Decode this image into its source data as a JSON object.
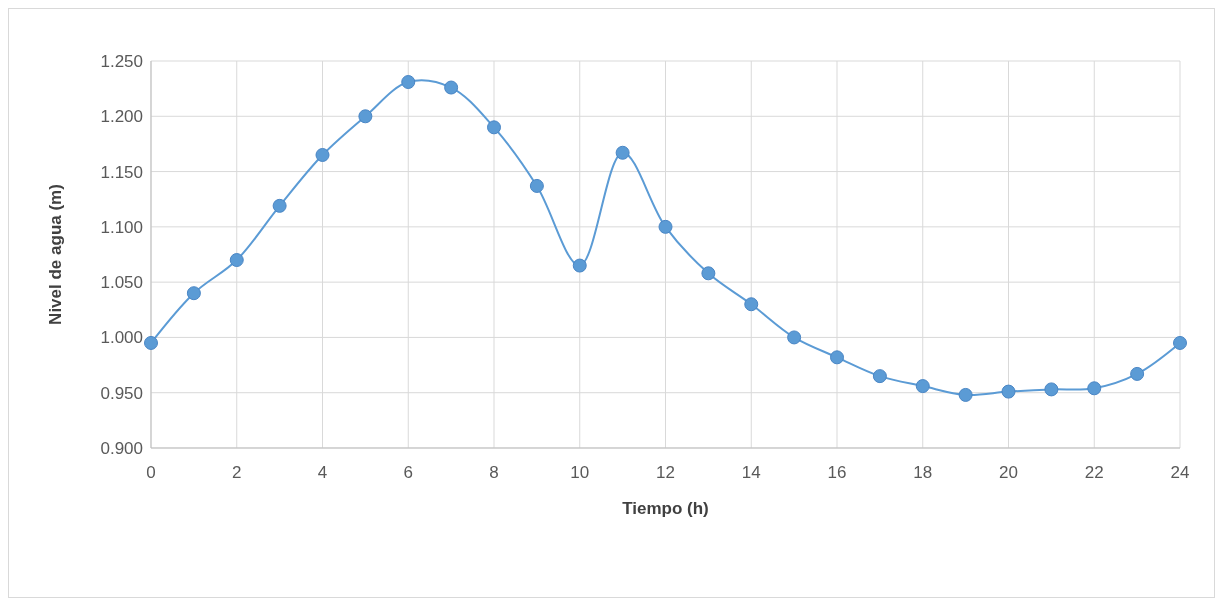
{
  "chart_data": {
    "type": "line",
    "xlabel": "Tiempo (h)",
    "ylabel": "Nivel de agua (m)",
    "x": [
      0,
      1,
      2,
      3,
      4,
      5,
      6,
      7,
      8,
      9,
      10,
      11,
      12,
      13,
      14,
      15,
      16,
      17,
      18,
      19,
      20,
      21,
      22,
      23,
      24
    ],
    "series": [
      {
        "color": "#5b9bd5",
        "values": [
          0.995,
          1.04,
          1.07,
          1.119,
          1.165,
          1.2,
          1.231,
          1.226,
          1.19,
          1.137,
          1.065,
          1.167,
          1.1,
          1.058,
          1.03,
          1.0,
          0.982,
          0.965,
          0.956,
          0.948,
          0.951,
          0.953,
          0.954,
          0.967,
          0.995
        ]
      }
    ],
    "xlim": [
      0,
      24
    ],
    "xticks": [
      0,
      2,
      4,
      6,
      8,
      10,
      12,
      14,
      16,
      18,
      20,
      22,
      24
    ],
    "ylim": [
      0.9,
      1.25
    ],
    "yticks": [
      {
        "value": 0.9,
        "label": "0.900"
      },
      {
        "value": 0.95,
        "label": "0.950"
      },
      {
        "value": 1.0,
        "label": "1.000"
      },
      {
        "value": 1.05,
        "label": "1.050"
      },
      {
        "value": 1.1,
        "label": "1.100"
      },
      {
        "value": 1.15,
        "label": "1.150"
      },
      {
        "value": 1.2,
        "label": "1.200"
      },
      {
        "value": 1.25,
        "label": "1.250"
      }
    ],
    "grid": true,
    "marker": "circle",
    "line_style": "solid"
  }
}
